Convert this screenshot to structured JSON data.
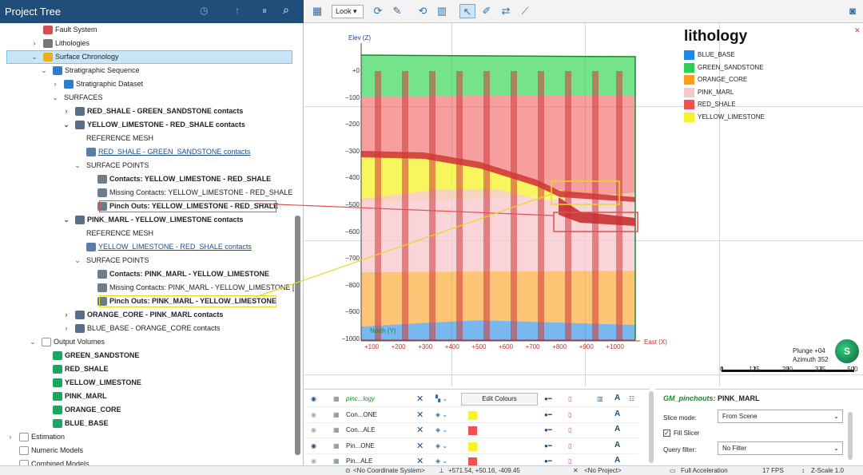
{
  "left_panel": {
    "title": "Project Tree",
    "tree": [
      {
        "label": "Fault System",
        "indent": 54,
        "chev": "",
        "icon": "fault-icon",
        "bold": false
      },
      {
        "label": "Lithologies",
        "indent": 54,
        "chev": "›",
        "icon": "lithology-icon",
        "bold": false
      },
      {
        "label": "Surface Chronology",
        "indent": 54,
        "chev": "⌄",
        "icon": "chronology-icon",
        "bold": false,
        "selected": true
      },
      {
        "label": "Stratigraphic Sequence",
        "indent": 66,
        "chev": "⌄",
        "icon": "sequence-icon",
        "bold": false
      },
      {
        "label": "Stratigraphic Dataset",
        "indent": 80,
        "chev": "›",
        "icon": "dataset-icon",
        "bold": false
      },
      {
        "label": "SURFACES",
        "indent": 80,
        "chev": "⌄",
        "icon": "",
        "bold": false
      },
      {
        "label": "RED_SHALE - GREEN_SANDSTONE contacts",
        "indent": 94,
        "chev": "›",
        "icon": "surface-icon",
        "bold": true
      },
      {
        "label": "YELLOW_LIMESTONE - RED_SHALE contacts",
        "indent": 94,
        "chev": "⌄",
        "icon": "surface-icon",
        "bold": true
      },
      {
        "label": "REFERENCE MESH",
        "indent": 108,
        "chev": "",
        "icon": "",
        "bold": false
      },
      {
        "label": "RED_SHALE - GREEN_SANDSTONE contacts",
        "indent": 108,
        "chev": "",
        "icon": "mesh-icon",
        "bold": false,
        "link": true
      },
      {
        "label": "SURFACE POINTS",
        "indent": 108,
        "chev": "⌄",
        "icon": "",
        "bold": false
      },
      {
        "label": "Contacts: YELLOW_LIMESTONE - RED_SHALE",
        "indent": 122,
        "chev": "",
        "icon": "points-icon",
        "bold": true
      },
      {
        "label": "Missing Contacts: YELLOW_LIMESTONE - RED_SHALE [...",
        "indent": 122,
        "chev": "",
        "icon": "points-icon",
        "bold": false
      },
      {
        "label": "Pinch Outs: YELLOW_LIMESTONE - RED_SHALE",
        "indent": 122,
        "chev": "",
        "icon": "points-icon",
        "bold": true,
        "box": "#e05050"
      },
      {
        "label": "PINK_MARL - YELLOW_LIMESTONE contacts",
        "indent": 94,
        "chev": "⌄",
        "icon": "surface-icon",
        "bold": true
      },
      {
        "label": "REFERENCE MESH",
        "indent": 108,
        "chev": "",
        "icon": "",
        "bold": false
      },
      {
        "label": "YELLOW_LIMESTONE - RED_SHALE contacts",
        "indent": 108,
        "chev": "",
        "icon": "mesh-icon",
        "bold": false,
        "link": true
      },
      {
        "label": "SURFACE POINTS",
        "indent": 108,
        "chev": "⌄",
        "icon": "",
        "bold": false
      },
      {
        "label": "Contacts: PINK_MARL - YELLOW_LIMESTONE",
        "indent": 122,
        "chev": "",
        "icon": "points-icon",
        "bold": true
      },
      {
        "label": "Missing Contacts: PINK_MARL - YELLOW_LIMESTONE [...",
        "indent": 122,
        "chev": "",
        "icon": "points-icon",
        "bold": false
      },
      {
        "label": "Pinch Outs: PINK_MARL - YELLOW_LIMESTONE",
        "indent": 122,
        "chev": "",
        "icon": "points-icon",
        "bold": true,
        "box": "#e8d820"
      },
      {
        "label": "ORANGE_CORE - PINK_MARL contacts",
        "indent": 94,
        "chev": "›",
        "icon": "surface-icon",
        "bold": true
      },
      {
        "label": "BLUE_BASE - ORANGE_CORE contacts",
        "indent": 94,
        "chev": "›",
        "icon": "surface-icon",
        "bold": false
      },
      {
        "label": "Output Volumes",
        "indent": 52,
        "chev": "⌄",
        "icon": "folder-icon",
        "bold": false
      },
      {
        "label": "GREEN_SANDSTONE",
        "indent": 66,
        "chev": "",
        "icon": "volume-icon",
        "bold": true
      },
      {
        "label": "RED_SHALE",
        "indent": 66,
        "chev": "",
        "icon": "volume-icon",
        "bold": true
      },
      {
        "label": "YELLOW_LIMESTONE",
        "indent": 66,
        "chev": "",
        "icon": "volume-icon",
        "bold": true
      },
      {
        "label": "PINK_MARL",
        "indent": 66,
        "chev": "",
        "icon": "volume-icon",
        "bold": true
      },
      {
        "label": "ORANGE_CORE",
        "indent": 66,
        "chev": "",
        "icon": "volume-icon",
        "bold": true
      },
      {
        "label": "BLUE_BASE",
        "indent": 66,
        "chev": "",
        "icon": "volume-icon",
        "bold": true
      },
      {
        "label": "Estimation",
        "indent": 24,
        "chev": "›",
        "icon": "folder-icon",
        "bold": false
      },
      {
        "label": "Numeric Models",
        "indent": 24,
        "chev": "",
        "icon": "folder-icon",
        "bold": false
      },
      {
        "label": "Combined Models",
        "indent": 24,
        "chev": "",
        "icon": "folder-icon",
        "bold": false
      }
    ]
  },
  "toolbar": {
    "look_label": "Look"
  },
  "viewer": {
    "elev_label": "Elev (Z)",
    "east_label": "East (X)",
    "north_label": "North (Y)",
    "z_ticks": [
      "+0",
      "−100",
      "−200",
      "−300",
      "−400",
      "−500",
      "−600",
      "−700",
      "−800",
      "−900",
      "−1000"
    ],
    "x_ticks": [
      "+100",
      "+200",
      "+300",
      "+400",
      "+500",
      "+600",
      "+700",
      "+800",
      "+900",
      "+1000"
    ],
    "legend_title": "lithology",
    "legend": [
      {
        "name": "BLUE_BASE",
        "color": "#1e88e5"
      },
      {
        "name": "GREEN_SANDSTONE",
        "color": "#2bd24f"
      },
      {
        "name": "ORANGE_CORE",
        "color": "#ff9e1a"
      },
      {
        "name": "PINK_MARL",
        "color": "#f7c6cc"
      },
      {
        "name": "RED_SHALE",
        "color": "#f05050"
      },
      {
        "name": "YELLOW_LIMESTONE",
        "color": "#f6f32a"
      }
    ],
    "plunge": "Plunge +04",
    "azimuth": "Azimuth 352",
    "compass": "S",
    "scale_ticks": [
      "0",
      "125",
      "250",
      "375",
      "500"
    ]
  },
  "bottom_panel": {
    "rows": [
      {
        "name": "pinc...logy",
        "edit_label": "Edit Colours"
      },
      {
        "name": "Con...ONE",
        "color": "#f6f32a"
      },
      {
        "name": "Con...ALE",
        "color": "#f05050"
      },
      {
        "name": "Pin...ONE",
        "color": "#f6f32a"
      },
      {
        "name": "Pin...ALE",
        "color": "#f05050"
      }
    ]
  },
  "slice_panel": {
    "title_prefix": "GM_pinchouts:",
    "title_value": "PINK_MARL",
    "slice_mode_label": "Slice mode:",
    "slice_mode_value": "From Scene",
    "fill_slicer_label": "Fill Slicer",
    "query_filter_label": "Query filter:",
    "query_filter_value": "No Filter"
  },
  "status": {
    "coordinate": "<No Coordinate System>",
    "position": "+571.54, +50.16, -409.45",
    "project": "<No Project>",
    "accel": "Full Acceleration",
    "fps": "17 FPS",
    "zscale": "Z-Scale 1.0"
  }
}
